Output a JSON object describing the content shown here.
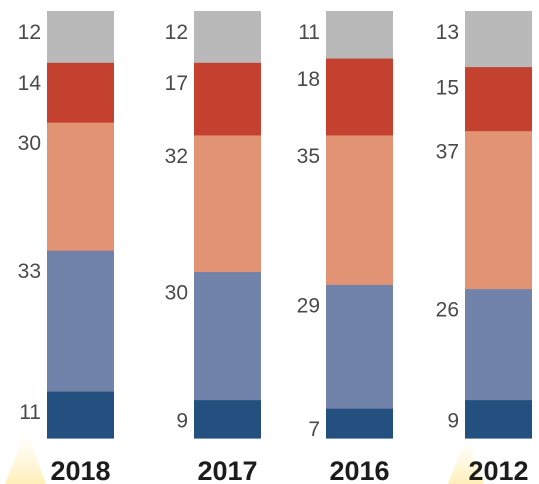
{
  "chart_data": {
    "type": "bar",
    "stacked": true,
    "orientation": "vertical",
    "categories": [
      "2018",
      "2017",
      "2016",
      "2012"
    ],
    "segment_order": "bottom-to-top",
    "series": [
      {
        "color": "#23507f",
        "values": [
          11,
          9,
          7,
          9
        ]
      },
      {
        "color": "#7183aa",
        "values": [
          33,
          30,
          29,
          26
        ]
      },
      {
        "color": "#e19374",
        "values": [
          30,
          32,
          35,
          37
        ]
      },
      {
        "color": "#c4412f",
        "values": [
          14,
          17,
          18,
          15
        ]
      },
      {
        "color": "#b9b9b9",
        "values": [
          12,
          12,
          11,
          13
        ]
      }
    ],
    "title": "",
    "xlabel": "",
    "ylabel": "",
    "grid": false,
    "legend": "none"
  }
}
